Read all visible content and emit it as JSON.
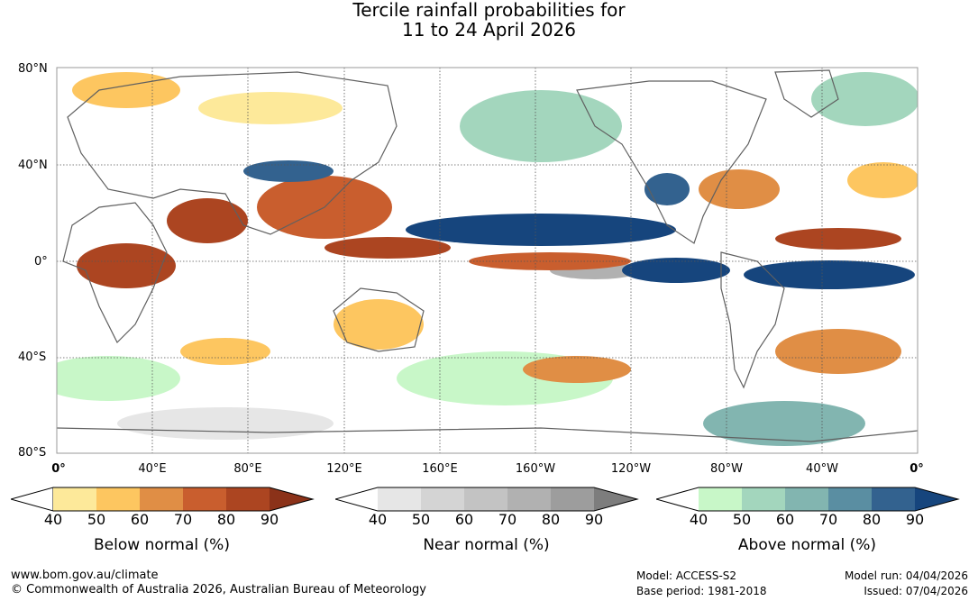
{
  "title": {
    "line1": "Tercile rainfall probabilities for",
    "line2": "11 to 24 April 2026"
  },
  "lat_labels": [
    "80°N",
    "40°N",
    "0°",
    "40°S",
    "80°S"
  ],
  "lon_labels": [
    "0°",
    "40°E",
    "80°E",
    "120°E",
    "160°E",
    "160°W",
    "120°W",
    "80°W",
    "40°W",
    "0°"
  ],
  "legends": [
    {
      "title": "Below normal (%)",
      "ticks": [
        "40",
        "50",
        "60",
        "70",
        "80",
        "90"
      ],
      "colors": [
        "#ffffff",
        "#fde99a",
        "#fdc660",
        "#e08e45",
        "#c95e2e",
        "#ac4521",
        "#8b3219"
      ]
    },
    {
      "title": "Near normal (%)",
      "ticks": [
        "40",
        "50",
        "60",
        "70",
        "80",
        "90"
      ],
      "colors": [
        "#ffffff",
        "#e6e6e6",
        "#d4d4d4",
        "#c3c3c3",
        "#b1b1b1",
        "#9d9d9d",
        "#7d7d7d"
      ]
    },
    {
      "title": "Above normal (%)",
      "ticks": [
        "40",
        "50",
        "60",
        "70",
        "80",
        "90"
      ],
      "colors": [
        "#ffffff",
        "#c8f7c8",
        "#a3d6bd",
        "#82b5b0",
        "#5a8ea2",
        "#33628f",
        "#16457d"
      ]
    }
  ],
  "footer": {
    "url": "www.bom.gov.au/climate",
    "copyright": "© Commonwealth of Australia 2026, Australian Bureau of Meteorology",
    "model": "Model: ACCESS-S2",
    "base_period": "Base period: 1981-2018",
    "model_run": "Model run: 04/04/2026",
    "issued": "Issued: 07/04/2026"
  }
}
